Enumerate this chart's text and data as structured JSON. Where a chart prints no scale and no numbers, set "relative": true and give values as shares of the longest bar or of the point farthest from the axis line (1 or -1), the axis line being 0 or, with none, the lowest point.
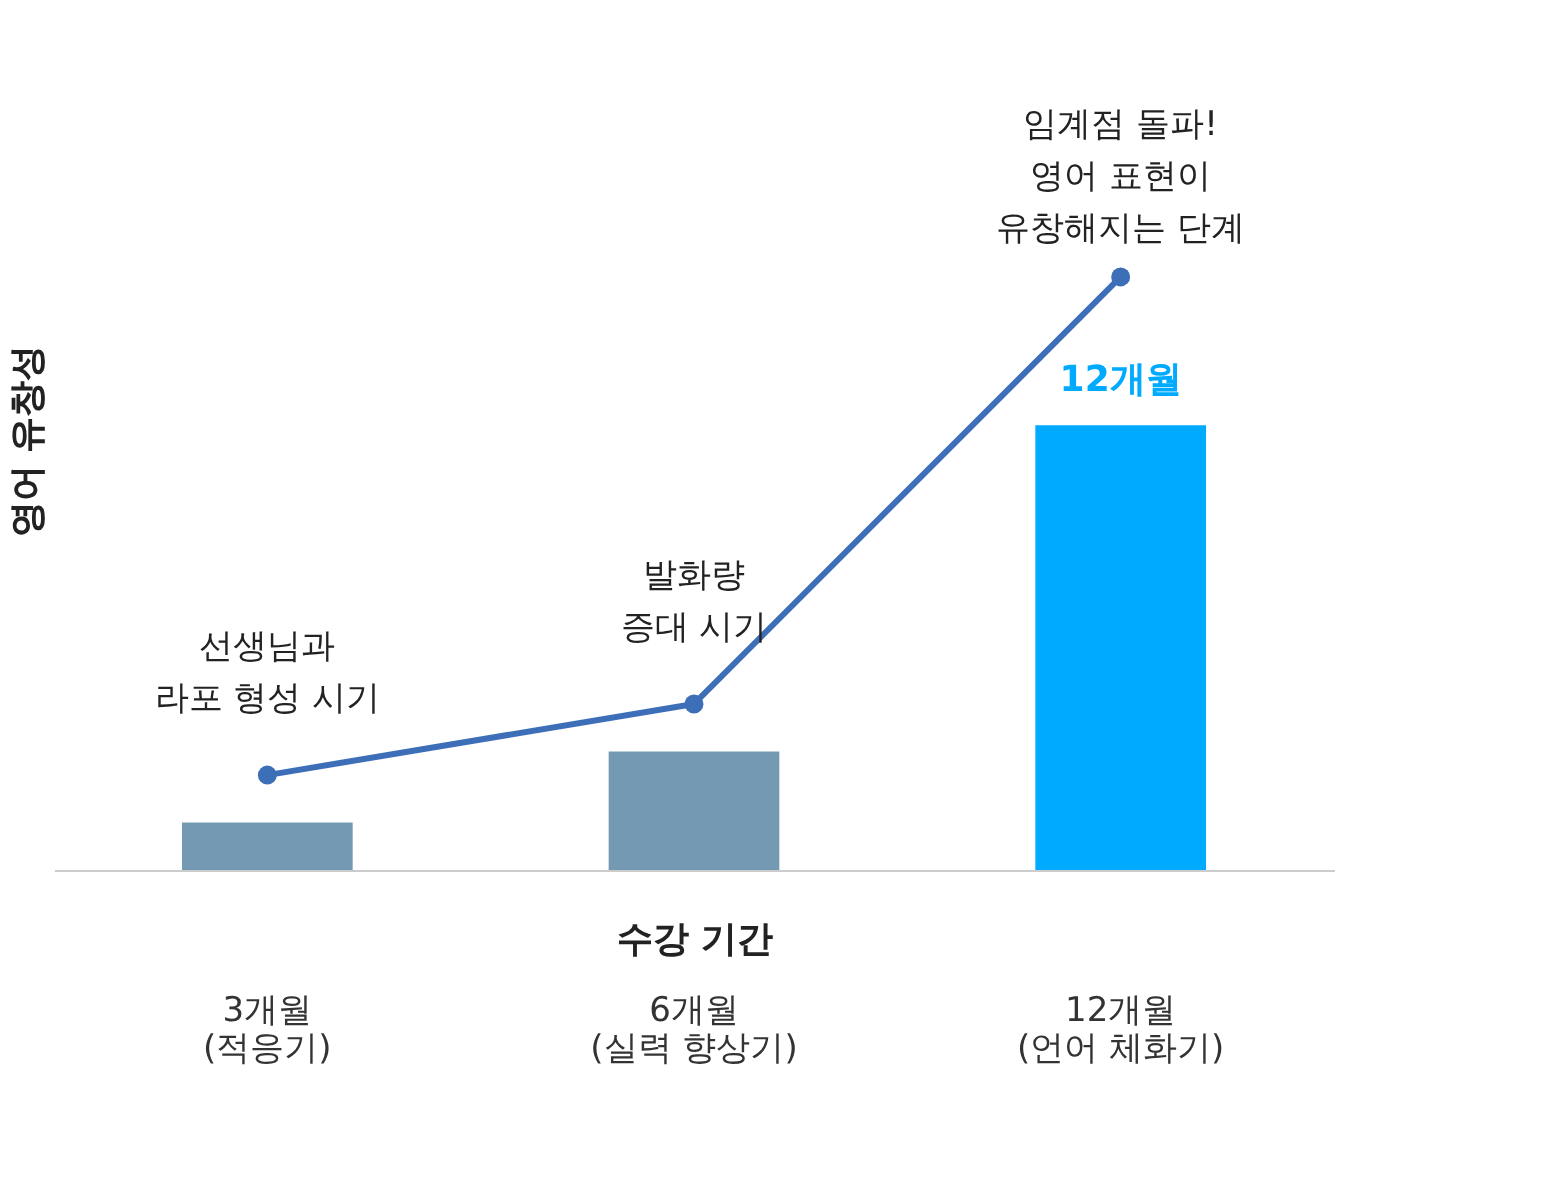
{
  "chart_data": {
    "type": "bar",
    "relative": true,
    "xlabel": "수강 기간",
    "ylabel": "영어 유창성",
    "categories": [
      "3개월\n(적응기)",
      "6개월\n(실력 향상기)",
      "12개월\n(언어 체화기)"
    ],
    "values": [
      0.08,
      0.2,
      0.75
    ],
    "colors": [
      "#7399b3",
      "#7399b3",
      "#00aaff"
    ],
    "series": [
      {
        "type": "line",
        "color": "#3d6fb8",
        "values": [
          0.16,
          0.28,
          1.0
        ]
      }
    ],
    "marker": "circle",
    "annotations": [
      {
        "text": "선생님과\n라포 형성 시기",
        "x": "3개월\n(적응기)",
        "y": 0.16
      },
      {
        "text": "발화량\n증대 시기",
        "x": "6개월\n(실력 향상기)",
        "y": 0.28
      },
      {
        "text": "임계점 돌파!\n영어 표현이\n유창해지는 단계",
        "x": "12개월\n(언어 체화기)",
        "y": 1.0
      },
      {
        "text": "12개월",
        "x": "12개월\n(언어 체화기)",
        "y": 0.75
      }
    ],
    "grid": false
  }
}
